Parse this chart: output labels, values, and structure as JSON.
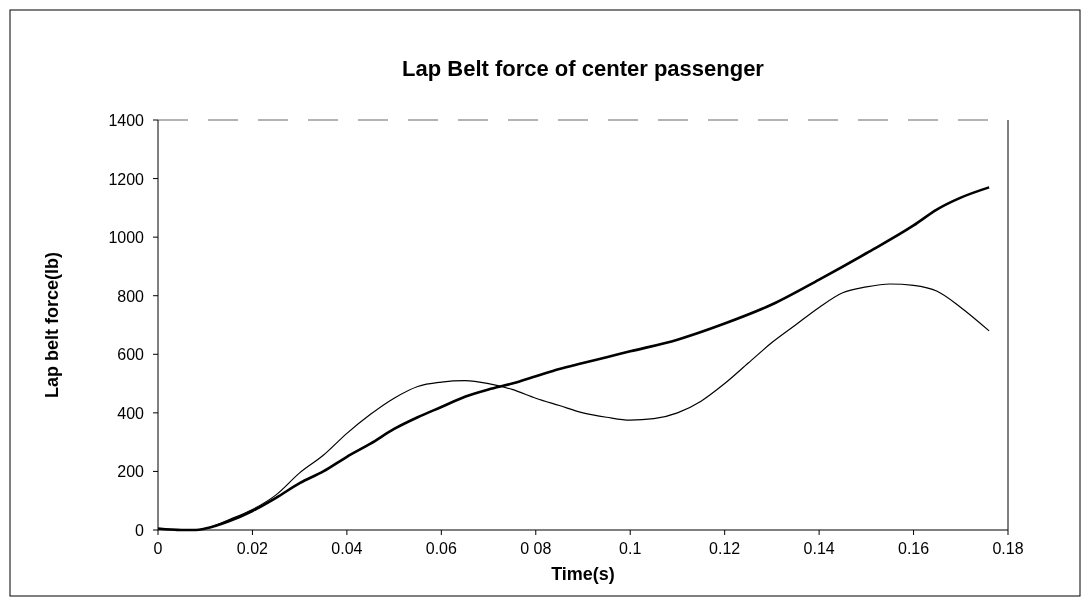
{
  "chart_data": {
    "type": "line",
    "title": "Lap Belt force of center passenger",
    "xlabel": "Time(s)",
    "ylabel": "Lap belt force(lb)",
    "xlim": [
      0,
      0.18
    ],
    "xticks": [
      0,
      0.02,
      0.04,
      0.06,
      {
        "value": 0.08,
        "label": "0 08"
      },
      0.1,
      0.12,
      0.14,
      0.16,
      0.18
    ],
    "ylim": [
      0,
      1400
    ],
    "yticks": [
      0,
      200,
      400,
      600,
      800,
      1000,
      1200,
      1400
    ],
    "grid": false,
    "legend": false,
    "series": [
      {
        "color": "#000000",
        "x": [
          0,
          0.005,
          0.008,
          0.01,
          0.015,
          0.02,
          0.025,
          0.03,
          0.035,
          0.04,
          0.045,
          0.05,
          0.055,
          0.06,
          0.065,
          0.07,
          0.075,
          0.08,
          0.085,
          0.09,
          0.095,
          0.1,
          0.105,
          0.11,
          0.115,
          0.12,
          0.125,
          0.13,
          0.135,
          0.14,
          0.145,
          0.15,
          0.155,
          0.16,
          0.165,
          0.17,
          0.176
        ],
        "values": [
          5,
          0,
          0,
          5,
          35,
          70,
          120,
          195,
          255,
          330,
          395,
          450,
          490,
          505,
          510,
          500,
          480,
          450,
          425,
          400,
          385,
          375,
          380,
          400,
          440,
          500,
          570,
          640,
          700,
          760,
          810,
          830,
          840,
          835,
          815,
          760,
          680
        ]
      },
      {
        "color": "#000000",
        "x": [
          0,
          0.005,
          0.008,
          0.01,
          0.015,
          0.02,
          0.025,
          0.03,
          0.035,
          0.04,
          0.045,
          0.05,
          0.055,
          0.06,
          0.065,
          0.07,
          0.075,
          0.08,
          0.085,
          0.09,
          0.095,
          0.1,
          0.11,
          0.12,
          0.13,
          0.14,
          0.15,
          0.16,
          0.165,
          0.17,
          0.176
        ],
        "values": [
          5,
          0,
          0,
          5,
          30,
          65,
          110,
          160,
          200,
          250,
          295,
          345,
          385,
          420,
          455,
          480,
          500,
          525,
          550,
          570,
          590,
          610,
          650,
          705,
          770,
          855,
          945,
          1040,
          1095,
          1135,
          1170
        ]
      }
    ]
  }
}
